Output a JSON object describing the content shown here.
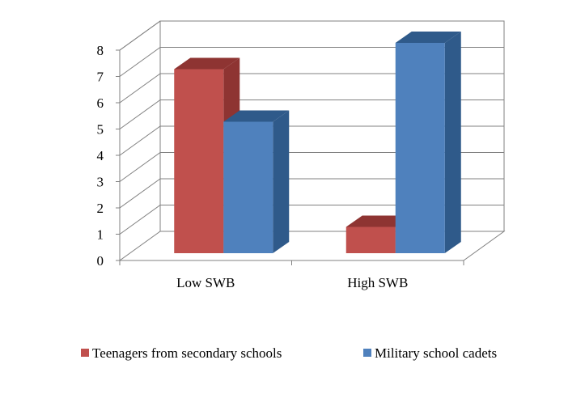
{
  "chart_data": {
    "type": "bar",
    "style": "3d-clustered-column",
    "categories": [
      "Low SWB",
      "High SWB"
    ],
    "series": [
      {
        "name": "Teenagers from secondary schools",
        "values": [
          7,
          1
        ],
        "color": "#C0504D",
        "top_color": "#8E3432",
        "side_color": "#8E3432"
      },
      {
        "name": "Military school cadets",
        "values": [
          5,
          8
        ],
        "color": "#4F81BD",
        "top_color": "#2F5A8A",
        "side_color": "#2F5A8A"
      }
    ],
    "ylim": [
      0,
      8
    ],
    "yticks": [
      0,
      1,
      2,
      3,
      4,
      5,
      6,
      7,
      8
    ],
    "grid": true,
    "legend_position": "bottom",
    "title": "",
    "xlabel": "",
    "ylabel": ""
  }
}
